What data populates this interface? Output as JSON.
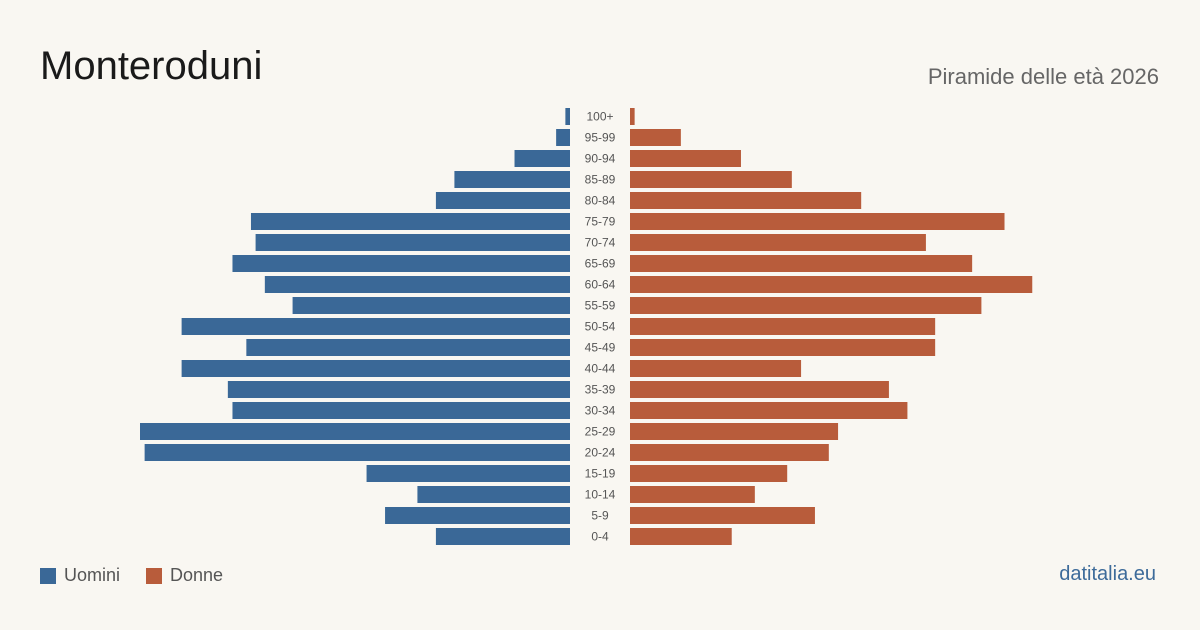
{
  "header": {
    "title": "Monteroduni",
    "subtitle": "Piramide delle età 2026"
  },
  "legend": [
    {
      "label": "Uomini",
      "color": "#3a6897"
    },
    {
      "label": "Donne",
      "color": "#b85c3b"
    }
  ],
  "footer": {
    "source": "datitalia.eu"
  },
  "chart_data": {
    "type": "bar",
    "orientation": "horizontal-population-pyramid",
    "categories": [
      "100+",
      "95-99",
      "90-94",
      "85-89",
      "80-84",
      "75-79",
      "70-74",
      "65-69",
      "60-64",
      "55-59",
      "50-54",
      "45-49",
      "40-44",
      "35-39",
      "30-34",
      "25-29",
      "20-24",
      "15-19",
      "10-14",
      "5-9",
      "0-4"
    ],
    "series": [
      {
        "name": "Uomini",
        "color": "#3a6897",
        "values": [
          1,
          3,
          12,
          25,
          29,
          69,
          68,
          73,
          66,
          60,
          84,
          70,
          84,
          74,
          73,
          93,
          92,
          44,
          33,
          40,
          29
        ]
      },
      {
        "name": "Donne",
        "color": "#b85c3b",
        "values": [
          1,
          11,
          24,
          35,
          50,
          81,
          64,
          74,
          87,
          76,
          66,
          66,
          37,
          56,
          60,
          45,
          43,
          34,
          27,
          40,
          22
        ]
      }
    ],
    "grid": false,
    "legend_position": "bottom-left"
  }
}
